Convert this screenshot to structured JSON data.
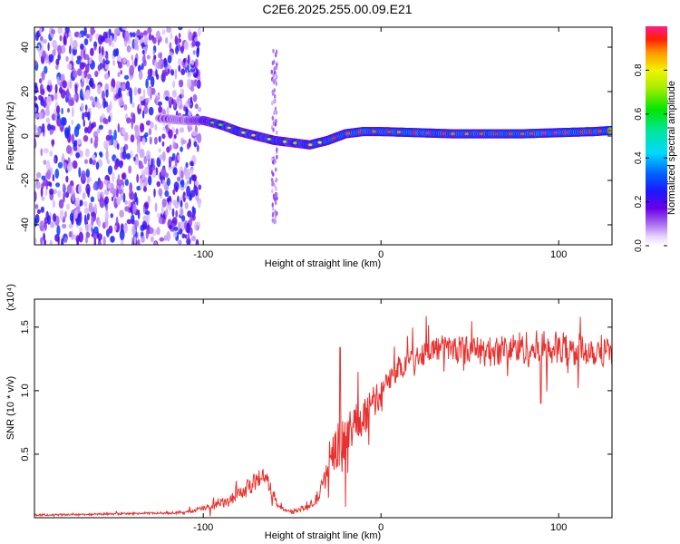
{
  "figure": {
    "title": "C2E6.2025.255.00.09.E21"
  },
  "chart_data": [
    {
      "type": "heatmap",
      "title": "C2E6.2025.255.00.09.E21",
      "xlabel": "Height of straight line (km)",
      "ylabel": "Frequency (Hz)",
      "xlim": [
        -195,
        130
      ],
      "ylim": [
        -49,
        49
      ],
      "x_ticks": [
        -100,
        0,
        100
      ],
      "y_ticks": [
        -40,
        -20,
        0,
        20,
        40
      ],
      "x_tick_labels": [
        "-100",
        "0",
        "100"
      ],
      "y_tick_labels": [
        "-40",
        "-20",
        "0",
        "20",
        "40"
      ],
      "colorbar": {
        "label": "Normalized spectral amplitude",
        "range": [
          0,
          1
        ],
        "ticks": [
          0.0,
          0.2,
          0.4,
          0.6,
          0.8
        ],
        "tick_labels": [
          "0.0",
          "0.2",
          "0.4",
          "0.6",
          "0.8"
        ],
        "colormap": "rainbow (white - purple - blue - cyan - green - yellow - red - magenta)"
      },
      "noise_region": {
        "x_range": [
          -195,
          -102
        ],
        "amplitude_range": [
          0.05,
          0.3
        ]
      },
      "ridge": {
        "description": "Doppler frequency of peak spectral amplitude vs. height",
        "x": [
          -125,
          -110,
          -100,
          -90,
          -80,
          -70,
          -60,
          -50,
          -40,
          -30,
          -20,
          -10,
          0,
          20,
          40,
          60,
          80,
          100,
          120,
          130
        ],
        "y": [
          8,
          7,
          7,
          5,
          2,
          0,
          -2,
          -3,
          -4,
          -2,
          1,
          2,
          2,
          1.5,
          1,
          1,
          1,
          1.5,
          2,
          2.5
        ],
        "peak_amplitude": [
          0.25,
          0.3,
          0.55,
          0.7,
          0.75,
          0.75,
          0.75,
          0.7,
          0.8,
          0.85,
          0.9,
          0.95,
          0.9,
          0.95,
          0.9,
          0.9,
          0.95,
          0.95,
          0.95,
          0.9
        ]
      },
      "grid": false
    },
    {
      "type": "line",
      "xlabel": "Height of straight line (km)",
      "ylabel": "SNR (10 * v/v)",
      "y_multiplier": "(x10⁴)",
      "xlim": [
        -195,
        130
      ],
      "ylim": [
        0,
        1.72
      ],
      "x_ticks": [
        -100,
        0,
        100
      ],
      "y_ticks": [
        0.5,
        1.0,
        1.5
      ],
      "x_tick_labels": [
        "-100",
        "0",
        "100"
      ],
      "y_tick_labels": [
        "0.5",
        "1.0",
        "1.5"
      ],
      "line_color": "#e8312e",
      "series": [
        {
          "x": [
            -195,
            -150,
            -110,
            -95,
            -85,
            -78,
            -72,
            -68,
            -65,
            -62,
            -58,
            -54,
            -50,
            -45,
            -40,
            -35,
            -32,
            -30,
            -28,
            -26,
            -24,
            -23,
            -22,
            -20,
            -17,
            -14,
            -11,
            -8,
            -5,
            -2,
            0,
            3,
            6,
            10,
            14,
            18,
            22,
            26,
            30,
            35,
            40,
            45,
            50,
            60,
            70,
            80,
            85,
            90,
            95,
            100,
            105,
            110,
            115,
            120,
            125,
            130
          ],
          "y": [
            0.02,
            0.03,
            0.04,
            0.09,
            0.13,
            0.2,
            0.27,
            0.32,
            0.33,
            0.22,
            0.1,
            0.06,
            0.05,
            0.07,
            0.09,
            0.17,
            0.28,
            0.42,
            0.52,
            0.55,
            0.6,
            0.62,
            0.55,
            0.62,
            0.68,
            0.75,
            0.78,
            0.84,
            0.88,
            0.95,
            0.97,
            1.05,
            1.1,
            1.18,
            1.22,
            1.26,
            1.28,
            1.31,
            1.33,
            1.34,
            1.33,
            1.34,
            1.33,
            1.3,
            1.33,
            1.34,
            1.32,
            1.33,
            1.34,
            1.32,
            1.33,
            1.31,
            1.33,
            1.32,
            1.32,
            1.32
          ],
          "noise_amplitude": [
            0.008,
            0.008,
            0.01,
            0.03,
            0.05,
            0.06,
            0.07,
            0.07,
            0.07,
            0.05,
            0.02,
            0.01,
            0.01,
            0.02,
            0.03,
            0.06,
            0.08,
            0.12,
            0.15,
            0.18,
            0.2,
            0.22,
            0.2,
            0.2,
            0.2,
            0.18,
            0.18,
            0.16,
            0.14,
            0.12,
            0.11,
            0.1,
            0.1,
            0.1,
            0.09,
            0.09,
            0.09,
            0.1,
            0.1,
            0.1,
            0.1,
            0.1,
            0.1,
            0.12,
            0.12,
            0.14,
            0.15,
            0.15,
            0.15,
            0.14,
            0.14,
            0.14,
            0.13,
            0.13,
            0.13,
            0.13
          ]
        }
      ],
      "annotations": [
        {
          "x": -23,
          "y": 1.34,
          "note": "spike"
        },
        {
          "x": 90,
          "y": 0.9,
          "note": "dip"
        }
      ],
      "grid": false
    }
  ]
}
